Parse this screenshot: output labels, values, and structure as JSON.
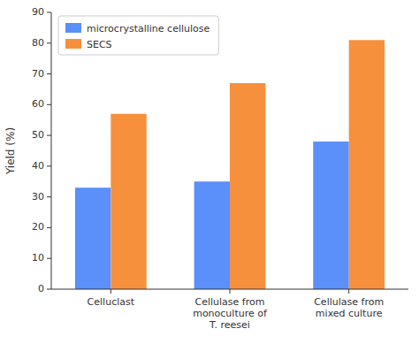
{
  "chart_data": {
    "type": "bar",
    "categories": [
      "Celluclast",
      "Cellulase from\nmonoculture of\nT. reesei",
      "Cellulase from\nmixed culture"
    ],
    "series": [
      {
        "name": "microcrystalline cellulose",
        "values": [
          33,
          35,
          48
        ]
      },
      {
        "name": "SECS",
        "values": [
          57,
          67,
          81
        ]
      }
    ],
    "ylabel": "Yield (%)",
    "ylim": [
      0,
      90
    ],
    "yticks": [
      0,
      10,
      20,
      30,
      40,
      50,
      60,
      70,
      80,
      90
    ],
    "grid": false,
    "legend": "upper left"
  }
}
